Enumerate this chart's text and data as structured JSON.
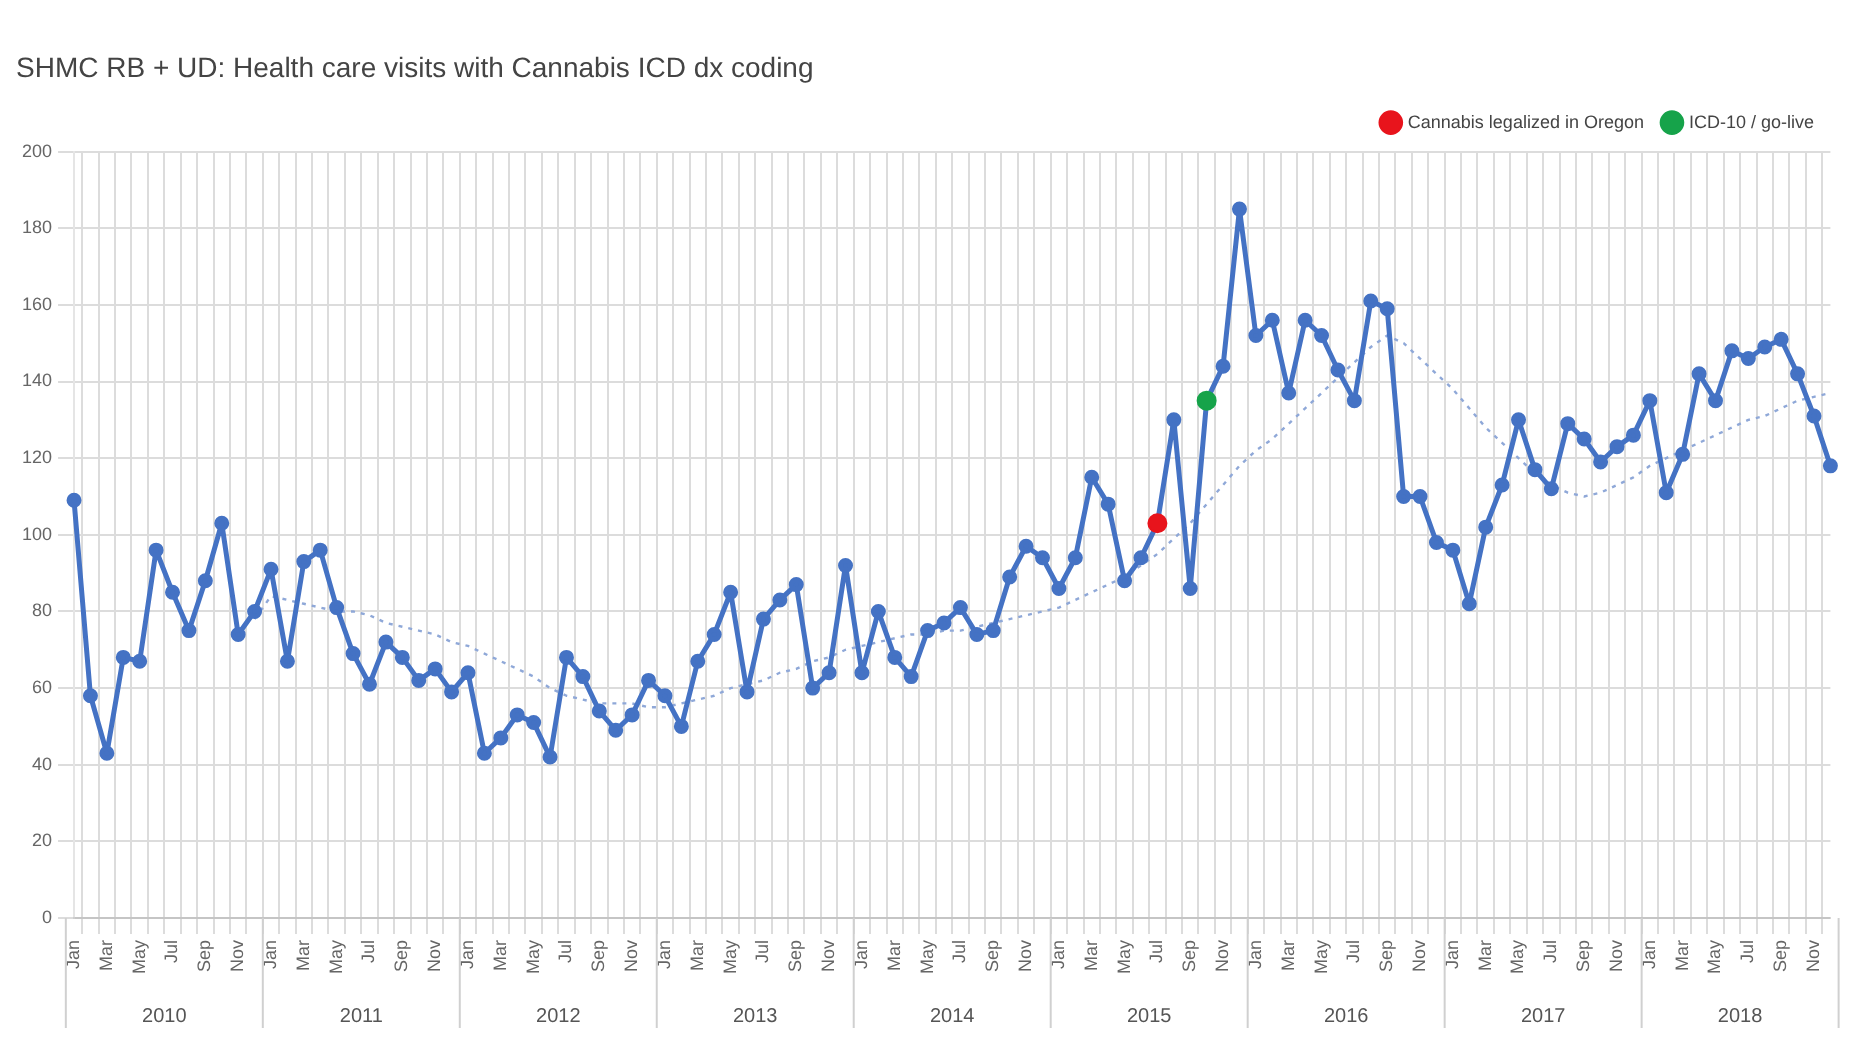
{
  "chart_data": {
    "type": "line",
    "title": "SHMC RB + UD: Health care visits with Cannabis ICD dx coding",
    "categories": [
      "Jan",
      null,
      "Mar",
      null,
      "May",
      null,
      "Jul",
      null,
      "Sep",
      null,
      "Nov",
      null,
      "Jan",
      null,
      "Mar",
      null,
      "May",
      null,
      "Jul",
      null,
      "Sep",
      null,
      "Nov",
      null,
      "Jan",
      null,
      "Mar",
      null,
      "May",
      null,
      "Jul",
      null,
      "Sep",
      null,
      "Nov",
      null,
      "Jan",
      null,
      "Mar",
      null,
      "May",
      null,
      "Jul",
      null,
      "Sep",
      null,
      "Nov",
      null,
      "Jan",
      null,
      "Mar",
      null,
      "May",
      null,
      "Jul",
      null,
      "Sep",
      null,
      "Nov",
      null,
      "Jan",
      null,
      "Mar",
      null,
      "May",
      null,
      "Jul",
      null,
      "Sep",
      null,
      "Nov",
      null,
      "Jan",
      null,
      "Mar",
      null,
      "May",
      null,
      "Jul",
      null,
      "Sep",
      null,
      "Nov",
      null,
      "Jan",
      null,
      "Mar",
      null,
      "May",
      null,
      "Jul",
      null,
      "Sep",
      null,
      "Nov",
      null,
      "Jan",
      null,
      "Mar",
      null,
      "May",
      null,
      "Jul",
      null,
      "Sep",
      null,
      "Nov",
      null
    ],
    "series": [
      {
        "type": "line",
        "color": "#4472c4",
        "marker": "circle",
        "line_style": "solid",
        "values": [
          109,
          58,
          43,
          68,
          67,
          96,
          85,
          75,
          88,
          103,
          74,
          80,
          91,
          67,
          93,
          96,
          81,
          69,
          61,
          72,
          68,
          62,
          65,
          59,
          64,
          43,
          47,
          53,
          51,
          42,
          68,
          63,
          54,
          49,
          53,
          62,
          58,
          50,
          67,
          74,
          85,
          59,
          78,
          83,
          87,
          60,
          64,
          92,
          64,
          80,
          68,
          63,
          75,
          77,
          81,
          74,
          75,
          89,
          97,
          94,
          86,
          94,
          115,
          108,
          88,
          94,
          103,
          130,
          86,
          135,
          144,
          185,
          152,
          156,
          137,
          156,
          152,
          143,
          135,
          161,
          159,
          110,
          110,
          98,
          96,
          82,
          102,
          113,
          130,
          117,
          112,
          129,
          125,
          119,
          123,
          126,
          135,
          111,
          121,
          142,
          135,
          148,
          146,
          149,
          151,
          142,
          131,
          118
        ]
      },
      {
        "type": "line",
        "color": "#8fa8d8",
        "marker": "none",
        "line_style": "dotted",
        "values": [
          null,
          null,
          null,
          null,
          null,
          null,
          null,
          null,
          null,
          null,
          null,
          78,
          84,
          83,
          82,
          81,
          80,
          80,
          79,
          77,
          76,
          75,
          74,
          72,
          71,
          69,
          67,
          65,
          63,
          60,
          58,
          57,
          56,
          56,
          56,
          55,
          55,
          56,
          57,
          58,
          60,
          61,
          62,
          64,
          65,
          67,
          68,
          70,
          71,
          72,
          73,
          74,
          74,
          75,
          75,
          76,
          77,
          78,
          79,
          80,
          81,
          83,
          85,
          87,
          89,
          92,
          95,
          99,
          103,
          108,
          113,
          118,
          122,
          125,
          129,
          133,
          137,
          141,
          145,
          149,
          152,
          150,
          146,
          142,
          138,
          133,
          128,
          124,
          120,
          116,
          113,
          111,
          110,
          111,
          113,
          115,
          118,
          120,
          122,
          124,
          126,
          128,
          130,
          131,
          133,
          135,
          136,
          137
        ]
      },
      {
        "type": "scatter",
        "name": "Cannabis legalized in Oregon",
        "color": "#e8141c",
        "marker": "circle",
        "values": [
          null,
          null,
          null,
          null,
          null,
          null,
          null,
          null,
          null,
          null,
          null,
          null,
          null,
          null,
          null,
          null,
          null,
          null,
          null,
          null,
          null,
          null,
          null,
          null,
          null,
          null,
          null,
          null,
          null,
          null,
          null,
          null,
          null,
          null,
          null,
          null,
          null,
          null,
          null,
          null,
          null,
          null,
          null,
          null,
          null,
          null,
          null,
          null,
          null,
          null,
          null,
          null,
          null,
          null,
          null,
          null,
          null,
          null,
          null,
          null,
          null,
          null,
          null,
          null,
          null,
          null,
          103,
          null,
          null,
          null,
          null,
          null,
          null,
          null,
          null,
          null,
          null,
          null,
          null,
          null,
          null,
          null,
          null,
          null,
          null,
          null,
          null,
          null,
          null,
          null,
          null,
          null,
          null,
          null,
          null,
          null,
          null,
          null,
          null,
          null,
          null,
          null,
          null,
          null,
          null,
          null,
          null,
          null
        ]
      },
      {
        "type": "scatter",
        "name": "ICD-10 / go-live",
        "color": "#16a34a",
        "marker": "circle",
        "values": [
          null,
          null,
          null,
          null,
          null,
          null,
          null,
          null,
          null,
          null,
          null,
          null,
          null,
          null,
          null,
          null,
          null,
          null,
          null,
          null,
          null,
          null,
          null,
          null,
          null,
          null,
          null,
          null,
          null,
          null,
          null,
          null,
          null,
          null,
          null,
          null,
          null,
          null,
          null,
          null,
          null,
          null,
          null,
          null,
          null,
          null,
          null,
          null,
          null,
          null,
          null,
          null,
          null,
          null,
          null,
          null,
          null,
          null,
          null,
          null,
          null,
          null,
          null,
          null,
          null,
          null,
          null,
          null,
          null,
          135,
          null,
          null,
          null,
          null,
          null,
          null,
          null,
          null,
          null,
          null,
          null,
          null,
          null,
          null,
          null,
          null,
          null,
          null,
          null,
          null,
          null,
          null,
          null,
          null,
          null,
          null,
          null,
          null,
          null,
          null,
          null,
          null,
          null,
          null,
          null,
          null,
          null,
          null
        ]
      }
    ],
    "annotations": [
      "2010",
      "2011",
      "2012",
      "2013",
      "2014",
      "2015",
      "2016",
      "2017",
      "2018"
    ],
    "ylim": [
      0,
      200
    ],
    "yticks": [
      0,
      20,
      40,
      60,
      80,
      100,
      120,
      140,
      160,
      180,
      200
    ],
    "grid": true,
    "legend": "top right"
  }
}
